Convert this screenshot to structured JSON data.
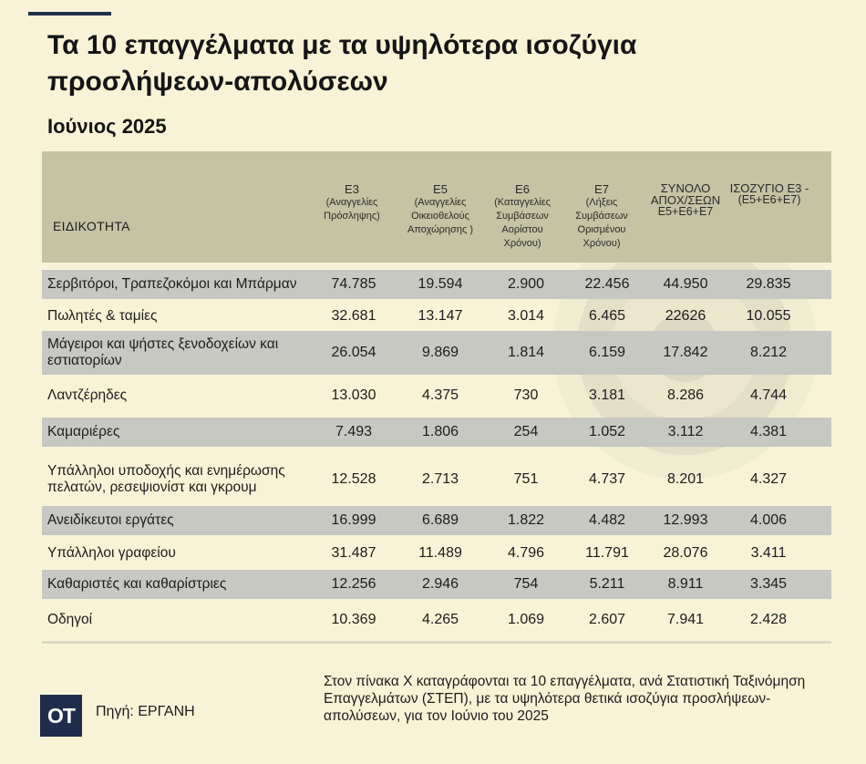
{
  "header": {
    "title": "Τα 10 επαγγέλματα με τα υψηλότερα ισοζύγια προσλήψεων-απολύσεων",
    "subtitle": "Ιούνιος 2025"
  },
  "chart_data": {
    "type": "table",
    "columns": [
      {
        "code": "ΕΙΔΙΚΟΤΗΤΑ",
        "desc": ""
      },
      {
        "code": "Ε3",
        "desc": "(Αναγγελίες Πρόσληψης)"
      },
      {
        "code": "Ε5",
        "desc": "(Αναγγελίες Οικειοθελούς Αποχώρησης )"
      },
      {
        "code": "Ε6",
        "desc": "(Καταγγελίες Συμβάσεων Αορίστου Χρόνου)"
      },
      {
        "code": "Ε7",
        "desc": "(Λήξεις Συμβάσεων Ορισμένου Χρόνου)"
      },
      {
        "code": "ΣΥΝΟΛΟ ΑΠΟΧ/ΣΕΩΝ",
        "desc": "Ε5+Ε6+Ε7"
      },
      {
        "code": "ΙΣΟΖΥΓΙΟ Ε3 -",
        "desc": "(Ε5+Ε6+Ε7)"
      }
    ],
    "rows": [
      {
        "label": "Σερβιτόροι, Τραπεζοκόμοι και Μπάρμαν",
        "values": [
          "74.785",
          "19.594",
          "2.900",
          "22.456",
          "44.950",
          "29.835"
        ]
      },
      {
        "label": "Πωλητές & ταμίες",
        "values": [
          "32.681",
          "13.147",
          "3.014",
          "6.465",
          "22626",
          "10.055"
        ]
      },
      {
        "label": "Μάγειροι και ψήστες ξενοδοχείων και εστιατορίων",
        "values": [
          "26.054",
          "9.869",
          "1.814",
          "6.159",
          "17.842",
          "8.212"
        ]
      },
      {
        "label": "Λαντζέρηδες",
        "values": [
          "13.030",
          "4.375",
          "730",
          "3.181",
          "8.286",
          "4.744"
        ]
      },
      {
        "label": "Καμαριέρες",
        "values": [
          "7.493",
          "1.806",
          "254",
          "1.052",
          "3.112",
          "4.381"
        ]
      },
      {
        "label": "Υπάλληλοι υποδοχής και ενημέρωσης πελατών, ρεσεψιονίστ και γκρουμ",
        "values": [
          "12.528",
          "2.713",
          "751",
          "4.737",
          "8.201",
          "4.327"
        ]
      },
      {
        "label": "Ανειδίκευτοι εργάτες",
        "values": [
          "16.999",
          "6.689",
          "1.822",
          "4.482",
          "12.993",
          "4.006"
        ]
      },
      {
        "label": "Υπάλληλοι γραφείου",
        "values": [
          "31.487",
          "11.489",
          "4.796",
          "11.791",
          "28.076",
          "3.411"
        ]
      },
      {
        "label": "Καθαριστές και καθαρίστριες",
        "values": [
          "12.256",
          "2.946",
          "754",
          "5.211",
          "8.911",
          "3.345"
        ]
      },
      {
        "label": "Οδηγοί",
        "values": [
          "10.369",
          "4.265",
          "1.069",
          "2.607",
          "7.941",
          "2.428"
        ]
      }
    ]
  },
  "footer": {
    "logo": "ΟΤ",
    "source": "Πηγή: ΕΡΓΑΝΗ",
    "note": "Στον πίνακα Χ καταγράφονται τα 10 επαγγέλματα, ανά Στατιστική Ταξινόμηση Επαγγελμάτων (ΣΤΕΠ), με τα υψηλότερα θετικά ισοζύγια προσλήψεων-απολύσεων, για τον Ιούνιο του 2025"
  },
  "colors": {
    "background": "#f8f3d6",
    "header_band": "#c5c3a4",
    "shaded_row": "#c8c8c2",
    "brand": "#1f2d4c"
  }
}
